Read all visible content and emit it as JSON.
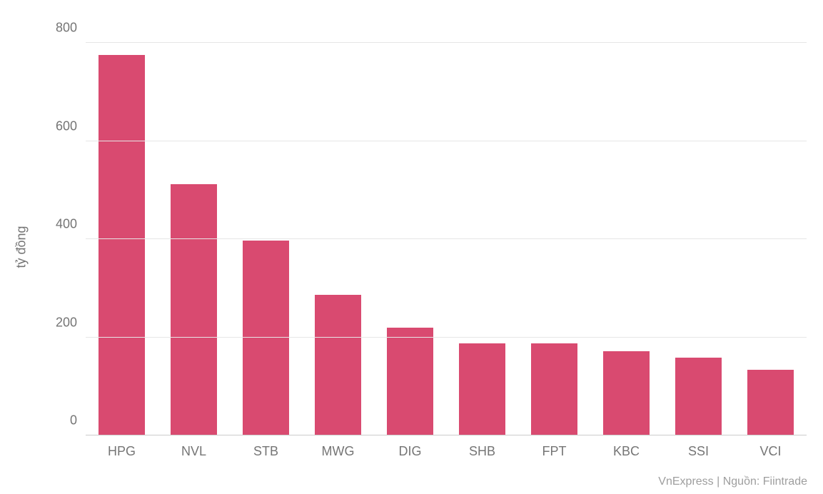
{
  "chart": {
    "type": "bar",
    "ylabel": "tỷ đồng",
    "label_fontsize": 18,
    "label_color": "#757575",
    "ylim": [
      0,
      800
    ],
    "ytick_step": 200,
    "yticks": [
      0,
      200,
      400,
      600,
      800
    ],
    "categories": [
      "HPG",
      "NVL",
      "STB",
      "MWG",
      "DIG",
      "SHB",
      "FPT",
      "KBC",
      "SSI",
      "VCI"
    ],
    "values": [
      775,
      512,
      397,
      286,
      219,
      188,
      188,
      172,
      159,
      134
    ],
    "bar_color": "#d94a70",
    "bar_width": 0.64,
    "background_color": "#ffffff",
    "grid_color": "#e6e6e6",
    "baseline_color": "#cccccc",
    "tick_fontsize": 18,
    "tick_color": "#757575",
    "credit": "VnExpress | Nguồn: Fiintrade",
    "credit_fontsize": 16,
    "credit_color": "#9e9e9e"
  }
}
